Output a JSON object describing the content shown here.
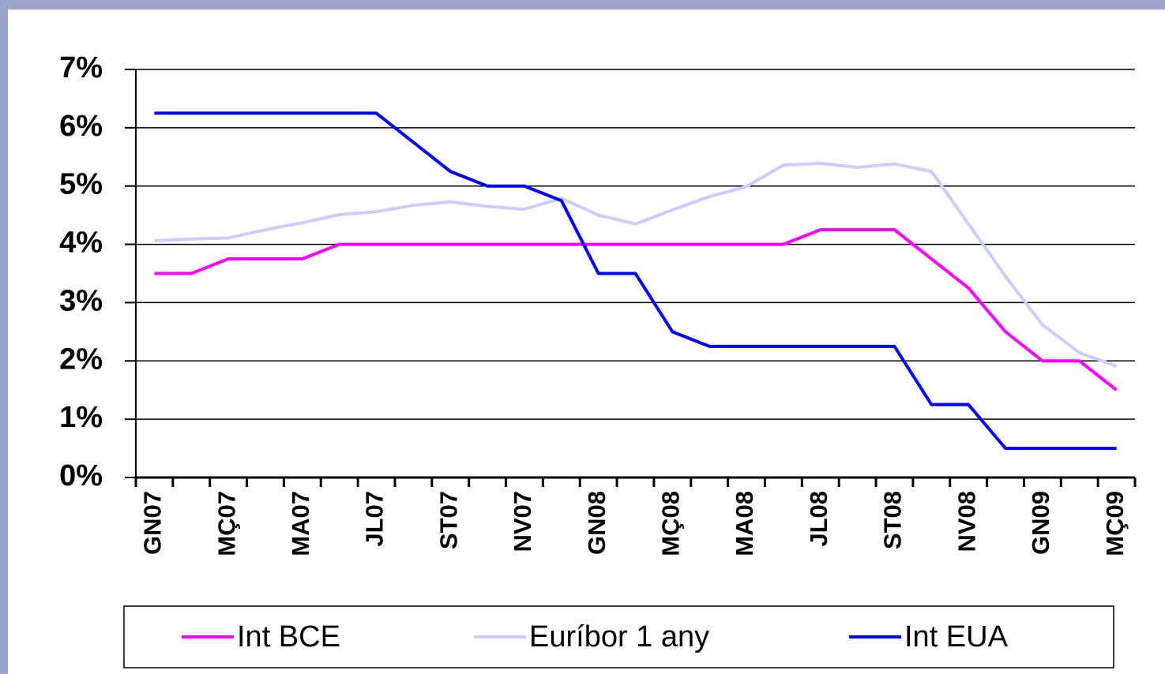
{
  "chart_data": {
    "type": "line",
    "categories": [
      "GN07",
      null,
      "MÇ07",
      null,
      "MA07",
      null,
      "JL07",
      null,
      "ST07",
      null,
      "NV07",
      null,
      "GN08",
      null,
      "MÇ08",
      null,
      "MA08",
      null,
      "JL08",
      null,
      "ST08",
      null,
      "NV08",
      null,
      "GN09",
      null,
      "MÇ09"
    ],
    "series": [
      {
        "name": "Int BCE",
        "color": "#ff00ff",
        "values": [
          3.5,
          3.5,
          3.75,
          3.75,
          3.75,
          4,
          4,
          4,
          4,
          4,
          4,
          4,
          4,
          4,
          4,
          4,
          4,
          4,
          4.25,
          4.25,
          4.25,
          3.75,
          3.25,
          2.5,
          2,
          2,
          1.5
        ]
      },
      {
        "name": "Euríbor 1 any",
        "color": "#ccccff",
        "values": [
          4.06,
          4.09,
          4.11,
          4.25,
          4.37,
          4.51,
          4.56,
          4.67,
          4.73,
          4.65,
          4.6,
          4.79,
          4.5,
          4.35,
          4.59,
          4.82,
          4.99,
          5.36,
          5.39,
          5.32,
          5.38,
          5.25,
          4.35,
          3.45,
          2.62,
          2.14,
          1.91
        ]
      },
      {
        "name": "Int EUA",
        "color": "#0000ff",
        "values": [
          6.25,
          6.25,
          6.25,
          6.25,
          6.25,
          6.25,
          6.25,
          5.75,
          5.25,
          5,
          5,
          4.75,
          3.5,
          3.5,
          2.5,
          2.25,
          2.25,
          2.25,
          2.25,
          2.25,
          2.25,
          1.25,
          1.25,
          0.5,
          0.5,
          0.5,
          0.5
        ]
      }
    ],
    "ylim": [
      0,
      7
    ],
    "yticks": [
      {
        "value": 0,
        "label": "0%"
      },
      {
        "value": 1,
        "label": "1%"
      },
      {
        "value": 2,
        "label": "2%"
      },
      {
        "value": 3,
        "label": "3%"
      },
      {
        "value": 4,
        "label": "4%"
      },
      {
        "value": 5,
        "label": "5%"
      },
      {
        "value": 6,
        "label": "6%"
      },
      {
        "value": 7,
        "label": "7%"
      }
    ],
    "grid": true,
    "legend": "bottom"
  }
}
